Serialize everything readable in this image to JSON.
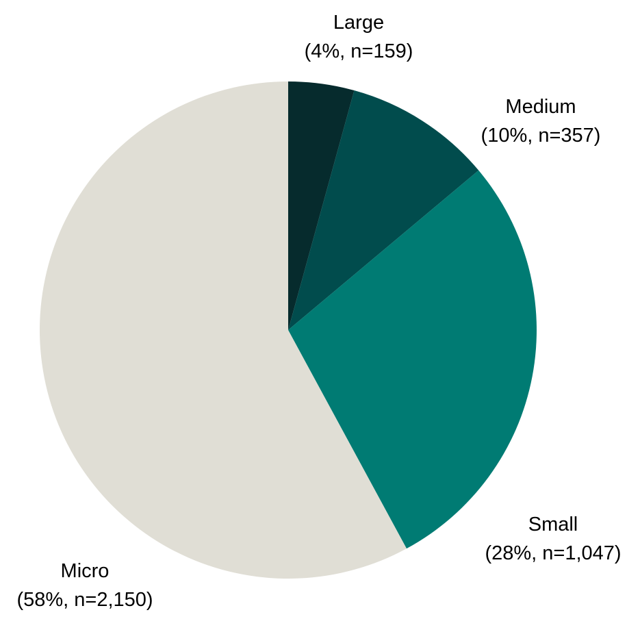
{
  "chart_data": {
    "type": "pie",
    "title": "",
    "start_angle_deg": 0,
    "direction": "clockwise",
    "slices": [
      {
        "name": "Large",
        "percent": 4,
        "n": 159,
        "detail": "(4%, n=159)",
        "color": "#062b2d"
      },
      {
        "name": "Medium",
        "percent": 10,
        "n": 357,
        "detail": "(10%, n=357)",
        "color": "#014c4d"
      },
      {
        "name": "Small",
        "percent": 28,
        "n": 1047,
        "detail": "(28%, n=1,047)",
        "color": "#007b73"
      },
      {
        "name": "Micro",
        "percent": 58,
        "n": 2150,
        "detail": "(58%, n=2,150)",
        "color": "#e0ded5"
      }
    ]
  }
}
